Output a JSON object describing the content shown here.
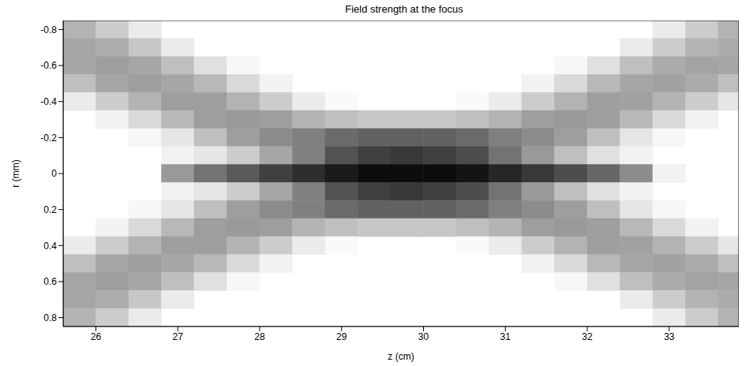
{
  "chart_data": {
    "type": "heatmap",
    "title": "Field strength at the focus",
    "x_label": "z (cm)",
    "y_label": "r (mm)",
    "xlim": [
      25.6,
      33.85
    ],
    "ylim": [
      -0.85,
      0.85
    ],
    "xticks": [
      26,
      27,
      28,
      29,
      30,
      31,
      32,
      33
    ],
    "yticks": [
      -0.8,
      -0.6,
      -0.4,
      -0.2,
      0,
      0.2,
      0.4,
      0.6,
      0.8
    ],
    "color": "#000000",
    "grid": false,
    "x_edges": [
      25.6,
      26.0,
      26.4,
      26.8,
      27.2,
      27.6,
      28.0,
      28.4,
      28.8,
      29.2,
      29.6,
      30.0,
      30.4,
      30.8,
      31.2,
      31.6,
      32.0,
      32.4,
      32.8,
      33.2,
      33.6,
      33.85
    ],
    "y_edges": [
      -0.85,
      -0.75,
      -0.65,
      -0.55,
      -0.45,
      -0.35,
      -0.25,
      -0.15,
      -0.05,
      0.05,
      0.15,
      0.25,
      0.35,
      0.45,
      0.55,
      0.65,
      0.75,
      0.85
    ],
    "cells": [
      [
        0.3,
        0.2,
        0.08,
        0,
        0,
        0,
        0,
        0,
        0,
        0,
        0,
        0,
        0,
        0,
        0,
        0,
        0,
        0,
        0.08,
        0.2,
        0.3
      ],
      [
        0.35,
        0.32,
        0.22,
        0.08,
        0,
        0,
        0,
        0,
        0,
        0,
        0,
        0,
        0,
        0,
        0,
        0,
        0,
        0.08,
        0.2,
        0.3,
        0.33
      ],
      [
        0.35,
        0.38,
        0.35,
        0.25,
        0.12,
        0.03,
        0,
        0,
        0,
        0,
        0,
        0,
        0,
        0,
        0,
        0.03,
        0.12,
        0.25,
        0.33,
        0.36,
        0.35
      ],
      [
        0.25,
        0.35,
        0.38,
        0.35,
        0.28,
        0.15,
        0.05,
        0,
        0,
        0,
        0,
        0,
        0,
        0,
        0.05,
        0.15,
        0.28,
        0.35,
        0.37,
        0.33,
        0.25
      ],
      [
        0.08,
        0.2,
        0.3,
        0.38,
        0.38,
        0.3,
        0.2,
        0.08,
        0.02,
        0,
        0,
        0,
        0.02,
        0.08,
        0.2,
        0.3,
        0.38,
        0.37,
        0.3,
        0.2,
        0.1
      ],
      [
        0,
        0.05,
        0.15,
        0.28,
        0.38,
        0.4,
        0.38,
        0.3,
        0.25,
        0.22,
        0.22,
        0.22,
        0.25,
        0.3,
        0.38,
        0.4,
        0.38,
        0.28,
        0.15,
        0.05,
        0
      ],
      [
        0,
        0,
        0.03,
        0.1,
        0.25,
        0.38,
        0.45,
        0.5,
        0.58,
        0.62,
        0.62,
        0.62,
        0.58,
        0.5,
        0.45,
        0.38,
        0.25,
        0.1,
        0.03,
        0,
        0
      ],
      [
        0,
        0,
        0,
        0.05,
        0.1,
        0.2,
        0.35,
        0.5,
        0.68,
        0.75,
        0.78,
        0.75,
        0.7,
        0.55,
        0.4,
        0.25,
        0.12,
        0.05,
        0,
        0,
        0
      ],
      [
        0,
        0,
        0,
        0.4,
        0.55,
        0.65,
        0.75,
        0.82,
        0.9,
        0.95,
        0.95,
        0.95,
        0.92,
        0.85,
        0.78,
        0.7,
        0.6,
        0.45,
        0.05,
        0,
        0
      ],
      [
        0,
        0,
        0,
        0.05,
        0.1,
        0.2,
        0.35,
        0.5,
        0.68,
        0.75,
        0.78,
        0.75,
        0.7,
        0.55,
        0.4,
        0.25,
        0.12,
        0.05,
        0,
        0,
        0
      ],
      [
        0,
        0,
        0.03,
        0.1,
        0.25,
        0.38,
        0.45,
        0.5,
        0.58,
        0.62,
        0.62,
        0.62,
        0.58,
        0.5,
        0.45,
        0.38,
        0.25,
        0.1,
        0.03,
        0,
        0
      ],
      [
        0,
        0.05,
        0.15,
        0.28,
        0.38,
        0.4,
        0.38,
        0.3,
        0.25,
        0.22,
        0.22,
        0.22,
        0.25,
        0.3,
        0.38,
        0.4,
        0.38,
        0.28,
        0.15,
        0.05,
        0
      ],
      [
        0.08,
        0.2,
        0.3,
        0.38,
        0.38,
        0.3,
        0.2,
        0.08,
        0.02,
        0,
        0,
        0,
        0.02,
        0.08,
        0.2,
        0.3,
        0.38,
        0.37,
        0.3,
        0.2,
        0.1
      ],
      [
        0.25,
        0.35,
        0.38,
        0.35,
        0.28,
        0.15,
        0.05,
        0,
        0,
        0,
        0,
        0,
        0,
        0,
        0.05,
        0.15,
        0.28,
        0.35,
        0.37,
        0.33,
        0.25
      ],
      [
        0.35,
        0.38,
        0.35,
        0.25,
        0.12,
        0.03,
        0,
        0,
        0,
        0,
        0,
        0,
        0,
        0,
        0,
        0.03,
        0.12,
        0.25,
        0.33,
        0.36,
        0.35
      ],
      [
        0.35,
        0.32,
        0.22,
        0.08,
        0,
        0,
        0,
        0,
        0,
        0,
        0,
        0,
        0,
        0,
        0,
        0,
        0,
        0.08,
        0.2,
        0.3,
        0.33
      ],
      [
        0.3,
        0.2,
        0.08,
        0,
        0,
        0,
        0,
        0,
        0,
        0,
        0,
        0,
        0,
        0,
        0,
        0,
        0,
        0,
        0.08,
        0.2,
        0.3
      ]
    ]
  }
}
